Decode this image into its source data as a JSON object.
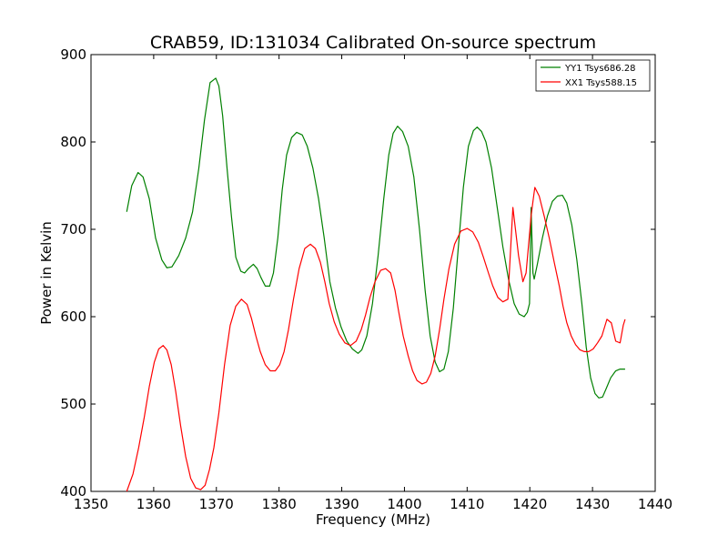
{
  "chart_data": {
    "type": "line",
    "title": "CRAB59, ID:131034 Calibrated On-source spectrum",
    "xlabel": "Frequency (MHz)",
    "ylabel": "Power in Kelvin",
    "xlim": [
      1350,
      1440
    ],
    "ylim": [
      400,
      900
    ],
    "xticks": [
      1350,
      1360,
      1370,
      1380,
      1390,
      1400,
      1410,
      1420,
      1430,
      1440
    ],
    "yticks": [
      400,
      500,
      600,
      700,
      800,
      900
    ],
    "grid": false,
    "legend_position": "top-right",
    "series": [
      {
        "name": "YY1 Tsys686.28",
        "color": "#008000",
        "x": [
          1355.7,
          1356.5,
          1357.5,
          1358.3,
          1359.3,
          1360.3,
          1361.3,
          1362.1,
          1362.9,
          1364.0,
          1365.1,
          1366.2,
          1367.2,
          1368.1,
          1369.0,
          1369.9,
          1370.4,
          1371.0,
          1371.7,
          1372.4,
          1373.1,
          1373.9,
          1374.5,
          1375.1,
          1375.9,
          1376.5,
          1377.1,
          1377.8,
          1378.5,
          1379.1,
          1379.8,
          1380.5,
          1381.2,
          1382.0,
          1382.8,
          1383.7,
          1384.5,
          1385.4,
          1386.3,
          1387.2,
          1388.1,
          1389.0,
          1389.9,
          1390.8,
          1391.7,
          1392.6,
          1393.2,
          1394.0,
          1394.9,
          1395.8,
          1396.7,
          1397.5,
          1398.2,
          1398.9,
          1399.7,
          1400.6,
          1401.5,
          1402.4,
          1403.3,
          1404.1,
          1404.9,
          1405.6,
          1406.3,
          1407.0,
          1407.8,
          1408.6,
          1409.4,
          1410.2,
          1411.0,
          1411.6,
          1412.3,
          1413.0,
          1413.9,
          1414.8,
          1415.7,
          1416.6,
          1417.5,
          1418.3,
          1419.1,
          1419.6,
          1419.95,
          1420.2,
          1420.5,
          1420.7,
          1421.2,
          1422.0,
          1422.8,
          1423.6,
          1424.4,
          1425.2,
          1425.9,
          1426.7,
          1427.5,
          1428.3,
          1429.0,
          1429.7,
          1430.4,
          1431.0,
          1431.6,
          1432.2,
          1432.9,
          1433.7,
          1434.4,
          1435.2
        ],
        "values": [
          720,
          750,
          765,
          760,
          735,
          690,
          665,
          656,
          657,
          670,
          690,
          720,
          770,
          825,
          868,
          873,
          864,
          830,
          770,
          715,
          668,
          652,
          650,
          655,
          660,
          655,
          645,
          635,
          635,
          650,
          690,
          745,
          785,
          805,
          811,
          808,
          795,
          770,
          735,
          690,
          640,
          610,
          588,
          572,
          563,
          558,
          562,
          578,
          615,
          670,
          735,
          785,
          810,
          818,
          812,
          795,
          760,
          700,
          630,
          578,
          548,
          537,
          540,
          560,
          610,
          680,
          748,
          795,
          813,
          817,
          812,
          800,
          770,
          725,
          680,
          643,
          615,
          603,
          600,
          605,
          615,
          725,
          650,
          643,
          660,
          690,
          715,
          732,
          738,
          739,
          730,
          705,
          665,
          615,
          565,
          530,
          512,
          507,
          508,
          518,
          530,
          538,
          540,
          540
        ]
      },
      {
        "name": "XX1 Tsys588.15",
        "color": "#ff0000",
        "x": [
          1355.7,
          1356.7,
          1357.6,
          1358.5,
          1359.3,
          1360.1,
          1360.8,
          1361.5,
          1362.1,
          1362.8,
          1363.5,
          1364.3,
          1365.1,
          1365.9,
          1366.7,
          1367.5,
          1368.2,
          1368.9,
          1369.6,
          1370.4,
          1371.3,
          1372.2,
          1373.1,
          1374.0,
          1374.9,
          1375.6,
          1376.3,
          1377.0,
          1377.8,
          1378.6,
          1379.4,
          1380.1,
          1380.8,
          1381.5,
          1382.3,
          1383.2,
          1384.1,
          1385.0,
          1385.8,
          1386.6,
          1387.3,
          1388.0,
          1388.8,
          1389.6,
          1390.5,
          1391.4,
          1392.3,
          1393.1,
          1393.8,
          1394.5,
          1395.3,
          1396.2,
          1397.0,
          1397.8,
          1398.5,
          1399.1,
          1399.8,
          1400.6,
          1401.3,
          1402.0,
          1402.8,
          1403.5,
          1404.2,
          1404.9,
          1405.6,
          1406.3,
          1407.1,
          1408.0,
          1409.0,
          1410.0,
          1410.9,
          1411.8,
          1412.6,
          1413.4,
          1414.1,
          1414.9,
          1415.7,
          1416.5,
          1417.3,
          1418.2,
          1418.9,
          1419.4,
          1419.9,
          1420.2,
          1420.5,
          1420.8,
          1421.5,
          1422.3,
          1423.1,
          1423.9,
          1424.7,
          1425.3,
          1425.9,
          1426.6,
          1427.3,
          1428.0,
          1428.7,
          1429.4,
          1430.1,
          1430.8,
          1431.5,
          1432.3,
          1433.0,
          1433.7,
          1434.4,
          1434.9,
          1435.2
        ],
        "values": [
          400,
          420,
          450,
          485,
          520,
          548,
          563,
          567,
          562,
          545,
          515,
          475,
          440,
          415,
          404,
          402,
          407,
          425,
          450,
          490,
          545,
          590,
          612,
          620,
          614,
          598,
          578,
          560,
          545,
          538,
          538,
          545,
          560,
          585,
          620,
          655,
          678,
          683,
          678,
          662,
          640,
          615,
          594,
          580,
          570,
          567,
          572,
          585,
          602,
          622,
          640,
          653,
          655,
          650,
          630,
          605,
          578,
          555,
          538,
          527,
          523,
          525,
          535,
          555,
          585,
          620,
          655,
          683,
          698,
          701,
          697,
          685,
          668,
          650,
          635,
          622,
          617,
          620,
          725,
          670,
          640,
          650,
          690,
          715,
          732,
          748,
          738,
          715,
          690,
          662,
          635,
          612,
          593,
          578,
          568,
          562,
          560,
          560,
          563,
          570,
          578,
          597,
          593,
          572,
          570,
          590,
          597
        ]
      }
    ]
  }
}
